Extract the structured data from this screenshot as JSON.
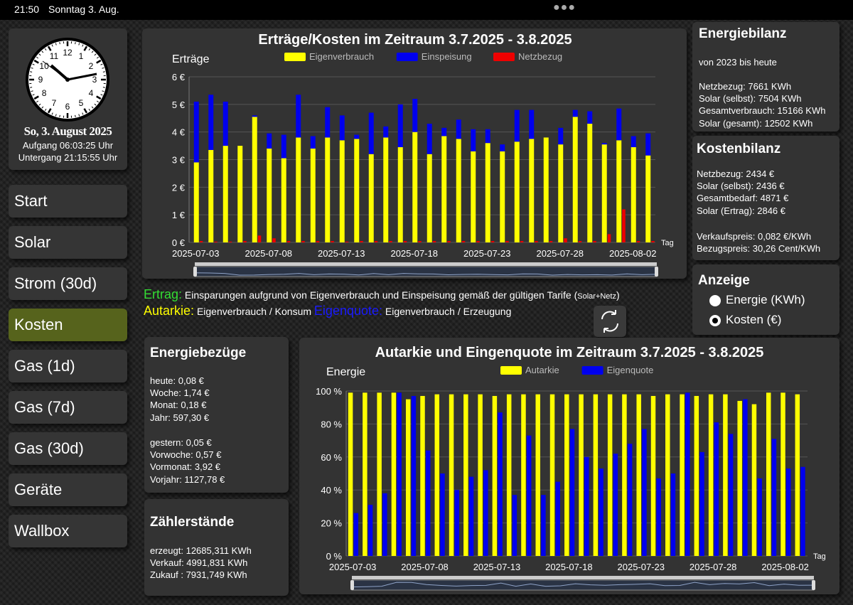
{
  "status": {
    "time": "21:50",
    "date": "Sonntag 3. Aug."
  },
  "clock": {
    "date": "So, 3. August 2025",
    "sunrise": "Aufgang 06:03:25 Uhr",
    "sunset": "Untergang 21:15:55 Uhr",
    "numbers": [
      "12",
      "1",
      "2",
      "3",
      "4",
      "5",
      "6",
      "7",
      "8",
      "9",
      "10",
      "11"
    ]
  },
  "nav": [
    {
      "label": "Start",
      "active": false
    },
    {
      "label": "Solar",
      "active": false
    },
    {
      "label": "Strom (30d)",
      "active": false
    },
    {
      "label": "Kosten",
      "active": true
    },
    {
      "label": "Gas (1d)",
      "active": false
    },
    {
      "label": "Gas (7d)",
      "active": false
    },
    {
      "label": "Gas (30d)",
      "active": false
    },
    {
      "label": "Geräte",
      "active": false
    },
    {
      "label": "Wallbox",
      "active": false
    }
  ],
  "energiebilanz": {
    "title": "Energiebilanz",
    "subtitle": "von 2023 bis heute",
    "lines": [
      "Netzbezug: 7661 KWh",
      "Solar (selbst): 7504 KWh",
      "Gesamtverbrauch: 15166 KWh",
      "Solar (gesamt): 12502 KWh"
    ]
  },
  "kostenbilanz": {
    "title": "Kostenbilanz",
    "lines": [
      "Netzbezug: 2434 €",
      "Solar (selbst): 2436 €",
      "Gesamtbedarf: 4871 €",
      "Solar (Ertrag): 2846 €"
    ],
    "prices": [
      "Verkaufspreis: 0,082 €/KWh",
      "Bezugspreis: 30,26 Cent/KWh"
    ]
  },
  "anzeige": {
    "title": "Anzeige",
    "options": [
      {
        "label": "Energie (KWh)",
        "selected": false
      },
      {
        "label": "Kosten (€)",
        "selected": true
      }
    ]
  },
  "legend_text": {
    "ertrag_key": "Ertrag:",
    "ertrag_text": "Einsparungen aufgrund von Eigenverbrauch und Einspeisung gemäß der gültigen Tarife (",
    "ertrag_small": "Solar+Netz",
    "ertrag_close": ")",
    "autarkie_key": "Autarkie:",
    "autarkie_text": "Eigenverbrauch / Konsum",
    "eigen_key": "Eigenquote:",
    "eigen_text": "Eigenverbrauch / Erzeugung"
  },
  "energiebezuege": {
    "title": "Energiebezüge",
    "current": [
      "heute: 0,08 €",
      "Woche: 1,74 €",
      "Monat: 0,18 €",
      "Jahr: 597,30 €"
    ],
    "previous": [
      "gestern: 0,05 €",
      "Vorwoche: 0,57 €",
      "Vormonat: 3,92 €",
      "Vorjahr: 1127,78 €"
    ]
  },
  "zaehler": {
    "title": "Zählerstände",
    "lines": [
      "erzeugt: 12685,311 KWh",
      "Verkauf: 4991,831 KWh",
      "Zukauf : 7931,749 KWh"
    ]
  },
  "colors": {
    "yellow": "#ffff00",
    "blue": "#0000ee",
    "red": "#ee0000",
    "panel": "#333333",
    "active_nav": "#56631c",
    "ertrag_key": "#33dd33",
    "eigen_key": "#1a1aff"
  },
  "chart_data": [
    {
      "type": "bar",
      "title": "Erträge/Kosten im Zeitraum 3.7.2025 - 3.8.2025",
      "ylabel": "Erträge",
      "xlabel": "Tag",
      "ylim": [
        0,
        6
      ],
      "yticks": [
        "0 €",
        "1 €",
        "2 €",
        "3 €",
        "4 €",
        "5 €",
        "6 €"
      ],
      "xticks": [
        "2025-07-03",
        "2025-07-08",
        "2025-07-13",
        "2025-07-18",
        "2025-07-23",
        "2025-07-28",
        "2025-08-02"
      ],
      "legend": "top-center",
      "categories": [
        "2025-07-03",
        "2025-07-04",
        "2025-07-05",
        "2025-07-06",
        "2025-07-07",
        "2025-07-08",
        "2025-07-09",
        "2025-07-10",
        "2025-07-11",
        "2025-07-12",
        "2025-07-13",
        "2025-07-14",
        "2025-07-15",
        "2025-07-16",
        "2025-07-17",
        "2025-07-18",
        "2025-07-19",
        "2025-07-20",
        "2025-07-21",
        "2025-07-22",
        "2025-07-23",
        "2025-07-24",
        "2025-07-25",
        "2025-07-26",
        "2025-07-27",
        "2025-07-28",
        "2025-07-29",
        "2025-07-30",
        "2025-07-31",
        "2025-08-01",
        "2025-08-02",
        "2025-08-03"
      ],
      "series": [
        {
          "name": "Eigenverbrauch",
          "values": [
            2.9,
            3.35,
            3.5,
            3.5,
            4.55,
            3.4,
            3.05,
            3.8,
            3.4,
            3.8,
            3.7,
            3.75,
            3.2,
            3.8,
            3.45,
            4.0,
            3.2,
            3.85,
            3.75,
            3.3,
            3.6,
            3.3,
            3.65,
            3.75,
            3.8,
            3.55,
            4.55,
            4.3,
            3.55,
            3.7,
            3.45,
            3.15
          ]
        },
        {
          "name": "Einspeisung",
          "values": [
            2.2,
            2.0,
            1.6,
            0.0,
            0.05,
            0.55,
            0.85,
            1.55,
            0.45,
            1.1,
            0.9,
            0.15,
            1.5,
            0.4,
            1.55,
            1.2,
            1.1,
            0.3,
            0.7,
            0.8,
            0.5,
            0.25,
            1.15,
            1.05,
            0.0,
            0.6,
            0.25,
            0.45,
            0.05,
            1.15,
            0.4,
            0.8
          ]
        },
        {
          "name": "Netzbezug",
          "values": [
            0.05,
            0.03,
            0.03,
            0.05,
            0.25,
            0.15,
            0.05,
            0.05,
            0.05,
            0.05,
            0.03,
            0.05,
            0.05,
            0.05,
            0.05,
            0.05,
            0.05,
            0.05,
            0.05,
            0.05,
            0.05,
            0.05,
            0.05,
            0.05,
            0.05,
            0.15,
            0.05,
            0.05,
            0.3,
            1.2,
            0.05,
            0.05
          ]
        }
      ]
    },
    {
      "type": "bar",
      "title": "Autarkie und Eingenquote im Zeitraum 3.7.2025 - 3.8.2025",
      "ylabel": "Energie",
      "xlabel": "Tag",
      "ylim": [
        0,
        100
      ],
      "yticks": [
        "0 %",
        "20 %",
        "40 %",
        "60 %",
        "80 %",
        "100 %"
      ],
      "xticks": [
        "2025-07-03",
        "2025-07-08",
        "2025-07-13",
        "2025-07-18",
        "2025-07-23",
        "2025-07-28",
        "2025-08-02"
      ],
      "legend": "top-center",
      "categories": [
        "2025-07-03",
        "2025-07-04",
        "2025-07-05",
        "2025-07-06",
        "2025-07-07",
        "2025-07-08",
        "2025-07-09",
        "2025-07-10",
        "2025-07-11",
        "2025-07-12",
        "2025-07-13",
        "2025-07-14",
        "2025-07-15",
        "2025-07-16",
        "2025-07-17",
        "2025-07-18",
        "2025-07-19",
        "2025-07-20",
        "2025-07-21",
        "2025-07-22",
        "2025-07-23",
        "2025-07-24",
        "2025-07-25",
        "2025-07-26",
        "2025-07-27",
        "2025-07-28",
        "2025-07-29",
        "2025-07-30",
        "2025-07-31",
        "2025-08-01",
        "2025-08-02",
        "2025-08-03"
      ],
      "series": [
        {
          "name": "Autarkie",
          "values": [
            99,
            99,
            99,
            99,
            95,
            97,
            98,
            98,
            98,
            98,
            97,
            98,
            98,
            98,
            98,
            98,
            98,
            98,
            98,
            98,
            98,
            97,
            98,
            98,
            97,
            98,
            98,
            94,
            92,
            99,
            99,
            98
          ]
        },
        {
          "name": "Eigenquote",
          "values": [
            26,
            31,
            38,
            99,
            97,
            64,
            50,
            40,
            48,
            52,
            87,
            37,
            73,
            37,
            45,
            77,
            60,
            53,
            62,
            68,
            77,
            47,
            50,
            99,
            63,
            81,
            74,
            95,
            47,
            71,
            53,
            54
          ]
        }
      ]
    }
  ]
}
